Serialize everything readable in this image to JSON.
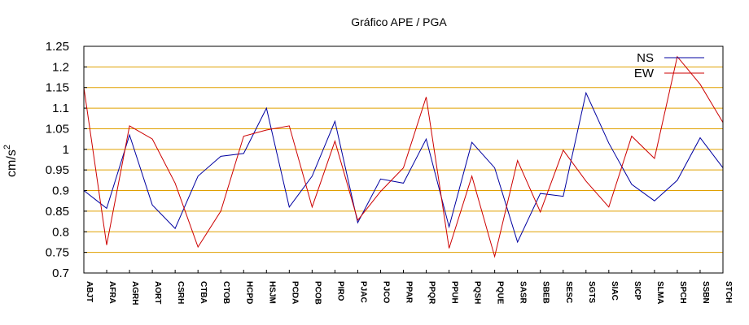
{
  "chart_data": {
    "type": "line",
    "title": "Gráfico  APE / PGA",
    "xlabel": "",
    "ylabel": "cm/s",
    "ylabel_superscript": "2",
    "ylim": [
      0.7,
      1.25
    ],
    "yticks": [
      "0.7",
      "0.75",
      "0.8",
      "0.85",
      "0.9",
      "0.95",
      "1",
      "1.05",
      "1.1",
      "1.15",
      "1.2",
      "1.25"
    ],
    "grid": "horizontal",
    "grid_color": "#e0a000",
    "legend_position": "top-right",
    "categories": [
      "ABJT",
      "AFRA",
      "AGRH",
      "AORT",
      "CSRH",
      "CTBA",
      "CTOB",
      "HCPD",
      "HSJM",
      "PCDA",
      "PCOB",
      "PIRO",
      "PJAC",
      "PJCO",
      "PPAR",
      "PPQR",
      "PPUH",
      "PQSH",
      "PQUE",
      "SASR",
      "SBEB",
      "SESC",
      "SGTS",
      "SIAC",
      "SICP",
      "SLMA",
      "SPCH",
      "SSBN",
      "STCH"
    ],
    "series": [
      {
        "name": "NS",
        "color": "#0000a0",
        "values": [
          0.9,
          0.857,
          1.035,
          0.865,
          0.808,
          0.935,
          0.983,
          0.99,
          1.1,
          0.86,
          0.935,
          1.068,
          0.822,
          0.928,
          0.918,
          1.025,
          0.812,
          1.017,
          0.955,
          0.775,
          0.893,
          0.886,
          1.137,
          1.015,
          0.915,
          0.875,
          0.925,
          1.028,
          0.955
        ]
      },
      {
        "name": "EW",
        "color": "#cc0000",
        "values": [
          1.15,
          0.768,
          1.057,
          1.025,
          0.918,
          0.763,
          0.85,
          1.032,
          1.047,
          1.057,
          0.86,
          1.02,
          0.828,
          0.898,
          0.955,
          1.127,
          0.76,
          0.935,
          0.74,
          0.973,
          0.848,
          0.998,
          0.923,
          0.86,
          1.032,
          0.978,
          1.225,
          1.158,
          1.065
        ]
      }
    ]
  }
}
